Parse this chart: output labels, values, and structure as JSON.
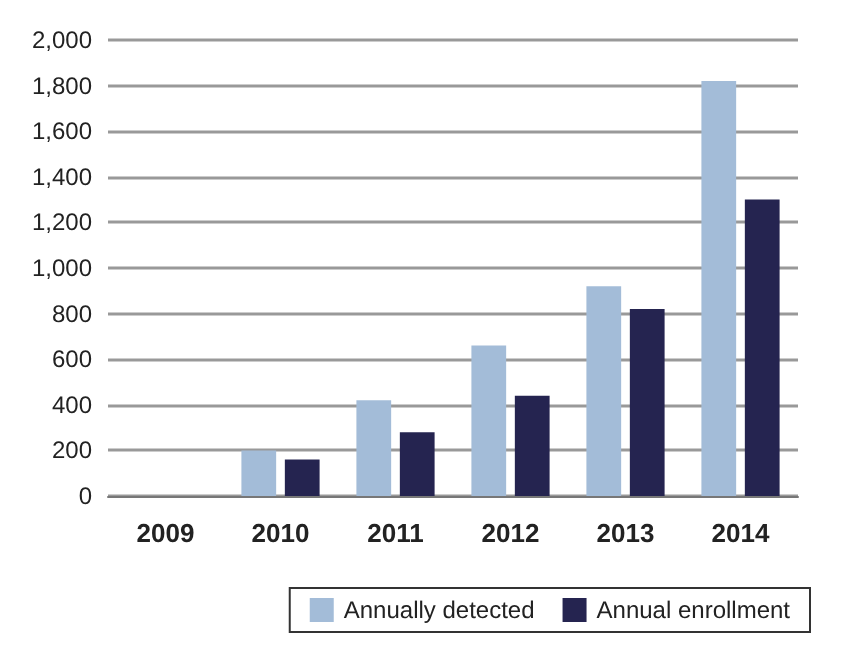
{
  "chart_data": {
    "type": "bar",
    "categories": [
      "2009",
      "2010",
      "2011",
      "2012",
      "2013",
      "2014"
    ],
    "series": [
      {
        "name": "Annually detected",
        "color": "#a3bcd8",
        "values": [
          0,
          200,
          420,
          660,
          920,
          1820
        ]
      },
      {
        "name": "Annual enrollment",
        "color": "#252450",
        "values": [
          0,
          160,
          280,
          440,
          820,
          1300
        ]
      }
    ],
    "ylim": [
      0,
      2000
    ],
    "yticks": [
      0,
      200,
      400,
      600,
      800,
      {
        "value": 1000,
        "label": "1,000"
      },
      {
        "value": 1200,
        "label": "1,200"
      },
      {
        "value": 1400,
        "label": "1,400"
      },
      {
        "value": 1600,
        "label": "1,600"
      },
      {
        "value": 1800,
        "label": "1,800"
      },
      {
        "value": 2000,
        "label": "2,000"
      }
    ],
    "grid": "y",
    "legend": "bottom right"
  }
}
